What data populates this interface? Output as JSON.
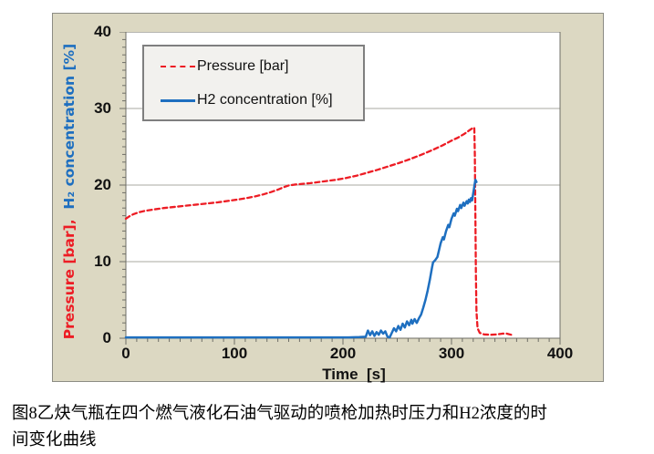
{
  "figure": {
    "caption_line1": "图8乙炔气瓶在四个燃气液化石油气驱动的喷枪加热时压力和H2浓度的时",
    "caption_line2": "间变化曲线"
  },
  "chart_data": {
    "type": "line",
    "title": "",
    "xlabel": "Time  [s]",
    "ylabel_pressure": "Pressure [bar],",
    "ylabel_h2": "H₂ concentration [%]",
    "xlim": [
      0,
      400
    ],
    "ylim": [
      0,
      40
    ],
    "x_ticks": [
      0,
      100,
      200,
      300,
      400
    ],
    "y_ticks": [
      0,
      10,
      20,
      30,
      40
    ],
    "x_minor_step": 10,
    "y_minor_step": 1,
    "grid_y": [
      10,
      20,
      30
    ],
    "grid_on": true,
    "legend_position": "upper-left-inside",
    "colors": {
      "pressure": "#ed1c24",
      "h2": "#1e6fc0",
      "plot_background": "#ffffff",
      "outer_background": "#dcd8c2",
      "gridline": "#aaaaa2",
      "axis": "#6e6e66",
      "legend_background": "#f2f1ee",
      "legend_border": "#7f7f7f"
    },
    "legend": [
      {
        "label": "Pressure [bar]",
        "style": "dashed",
        "color": "#ed1c24"
      },
      {
        "label": "H2 concentration [%]",
        "style": "solid",
        "color": "#1e6fc0"
      }
    ],
    "series": [
      {
        "name": "Pressure [bar]",
        "color": "#ed1c24",
        "dash": "5 3.5",
        "width": 2.3,
        "points": [
          [
            0,
            15.6
          ],
          [
            3,
            15.9
          ],
          [
            7,
            16.2
          ],
          [
            12,
            16.45
          ],
          [
            18,
            16.65
          ],
          [
            25,
            16.8
          ],
          [
            35,
            17.0
          ],
          [
            45,
            17.15
          ],
          [
            55,
            17.3
          ],
          [
            65,
            17.45
          ],
          [
            75,
            17.6
          ],
          [
            85,
            17.75
          ],
          [
            95,
            17.95
          ],
          [
            105,
            18.15
          ],
          [
            113,
            18.35
          ],
          [
            120,
            18.55
          ],
          [
            127,
            18.8
          ],
          [
            134,
            19.1
          ],
          [
            140,
            19.4
          ],
          [
            145,
            19.7
          ],
          [
            150,
            19.95
          ],
          [
            155,
            20.05
          ],
          [
            162,
            20.15
          ],
          [
            170,
            20.25
          ],
          [
            178,
            20.4
          ],
          [
            186,
            20.55
          ],
          [
            194,
            20.7
          ],
          [
            202,
            20.9
          ],
          [
            212,
            21.2
          ],
          [
            222,
            21.6
          ],
          [
            232,
            22.0
          ],
          [
            242,
            22.45
          ],
          [
            252,
            22.9
          ],
          [
            262,
            23.4
          ],
          [
            272,
            23.95
          ],
          [
            282,
            24.55
          ],
          [
            292,
            25.2
          ],
          [
            300,
            25.8
          ],
          [
            306,
            26.2
          ],
          [
            312,
            26.7
          ],
          [
            316,
            27.1
          ],
          [
            319,
            27.4
          ],
          [
            321,
            27.5
          ],
          [
            321.5,
            24
          ],
          [
            322,
            16
          ],
          [
            322.5,
            8
          ],
          [
            323,
            3.5
          ],
          [
            324,
            1.3
          ],
          [
            326,
            0.7
          ],
          [
            330,
            0.5
          ],
          [
            336,
            0.45
          ],
          [
            342,
            0.5
          ],
          [
            347,
            0.6
          ],
          [
            351,
            0.6
          ],
          [
            355,
            0.45
          ]
        ]
      },
      {
        "name": "H2 concentration [%]",
        "color": "#1e6fc0",
        "dash": "",
        "width": 2.5,
        "points": [
          [
            0,
            0.1
          ],
          [
            205,
            0.1
          ],
          [
            215,
            0.15
          ],
          [
            221,
            0.2
          ],
          [
            223,
            1.0
          ],
          [
            225,
            0.4
          ],
          [
            227,
            0.9
          ],
          [
            229,
            0.3
          ],
          [
            231,
            0.8
          ],
          [
            233,
            0.45
          ],
          [
            235,
            1.0
          ],
          [
            237,
            0.6
          ],
          [
            239,
            0.9
          ],
          [
            241,
            0.2
          ],
          [
            243,
            0.1
          ],
          [
            245,
            0.7
          ],
          [
            247,
            1.3
          ],
          [
            249,
            0.9
          ],
          [
            251,
            1.6
          ],
          [
            253,
            1.1
          ],
          [
            255,
            1.9
          ],
          [
            257,
            1.4
          ],
          [
            259,
            2.2
          ],
          [
            261,
            1.7
          ],
          [
            263,
            2.4
          ],
          [
            264,
            1.9
          ],
          [
            266,
            2.5
          ],
          [
            268,
            2.0
          ],
          [
            270,
            2.6
          ],
          [
            272,
            3.1
          ],
          [
            274,
            4.0
          ],
          [
            276,
            5.0
          ],
          [
            278,
            6.2
          ],
          [
            280,
            7.6
          ],
          [
            282,
            9.2
          ],
          [
            283,
            9.9
          ],
          [
            285,
            10.2
          ],
          [
            287,
            10.6
          ],
          [
            289,
            11.8
          ],
          [
            290,
            12.4
          ],
          [
            292,
            13.2
          ],
          [
            293,
            12.9
          ],
          [
            295,
            14.0
          ],
          [
            297,
            14.8
          ],
          [
            298,
            14.5
          ],
          [
            300,
            15.6
          ],
          [
            302,
            16.3
          ],
          [
            303,
            16.0
          ],
          [
            305,
            16.9
          ],
          [
            306,
            16.6
          ],
          [
            308,
            17.4
          ],
          [
            309,
            17.0
          ],
          [
            311,
            17.7
          ],
          [
            312,
            17.3
          ],
          [
            314,
            17.9
          ],
          [
            315,
            17.6
          ],
          [
            316,
            18.1
          ],
          [
            317,
            17.8
          ],
          [
            318,
            18.3
          ],
          [
            319,
            18.0
          ],
          [
            320,
            18.9
          ],
          [
            321,
            19.8
          ],
          [
            322,
            20.7
          ],
          [
            323,
            20.4
          ]
        ]
      }
    ]
  }
}
